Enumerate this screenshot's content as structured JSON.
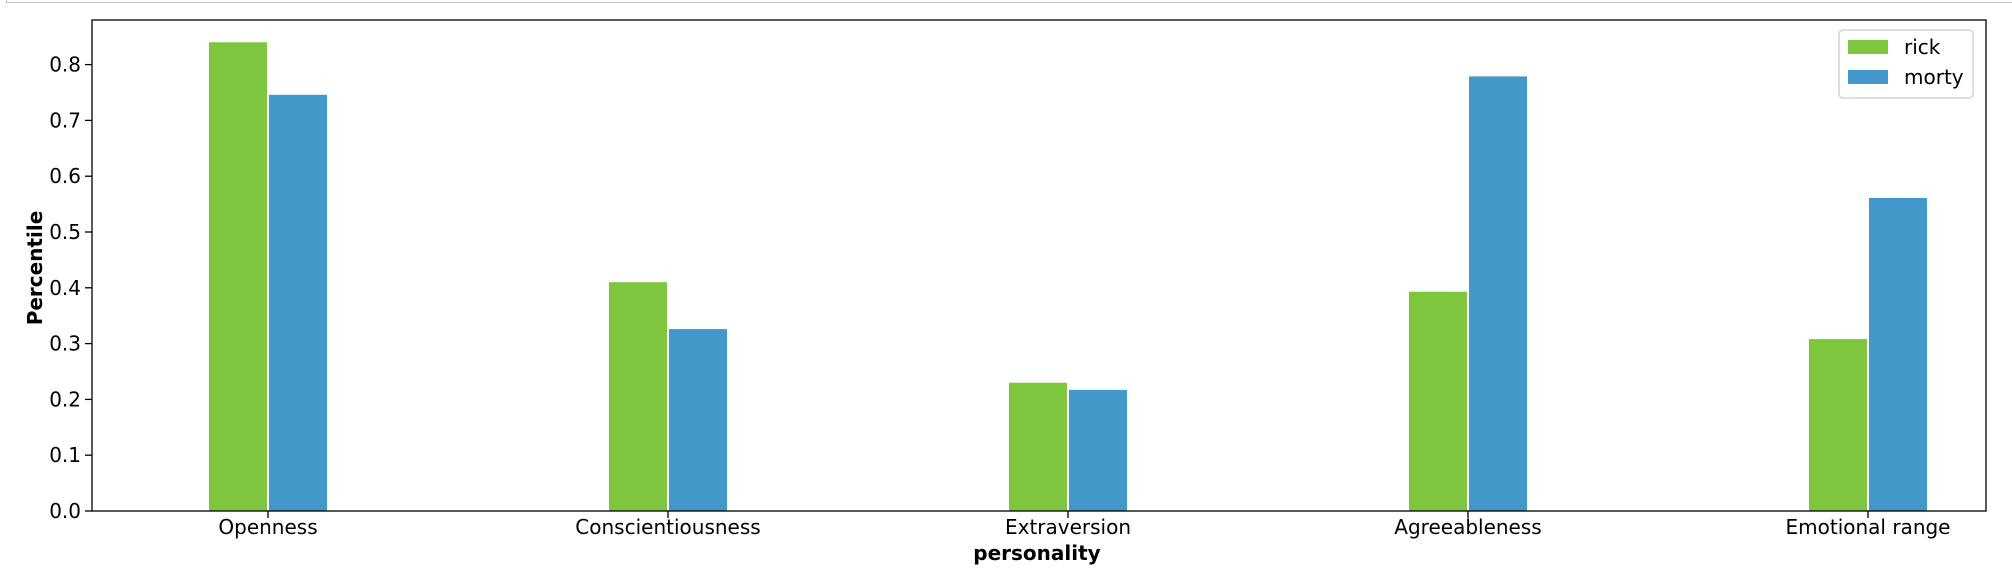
{
  "chart_data": {
    "type": "bar",
    "title": "",
    "xlabel": "personality",
    "ylabel": "Percentile",
    "categories": [
      "Openness",
      "Conscientiousness",
      "Extraversion",
      "Agreeableness",
      "Emotional range"
    ],
    "series": [
      {
        "name": "rick",
        "color": "#7ec63d",
        "values": [
          0.84,
          0.41,
          0.23,
          0.393,
          0.308
        ]
      },
      {
        "name": "morty",
        "color": "#4298c8",
        "values": [
          0.746,
          0.326,
          0.217,
          0.779,
          0.561
        ]
      }
    ],
    "ylim": [
      0,
      0.88
    ],
    "yticks": [
      "0.0",
      "0.1",
      "0.2",
      "0.3",
      "0.4",
      "0.5",
      "0.6",
      "0.7",
      "0.8"
    ],
    "grid": false,
    "legend_position": "top-right"
  }
}
